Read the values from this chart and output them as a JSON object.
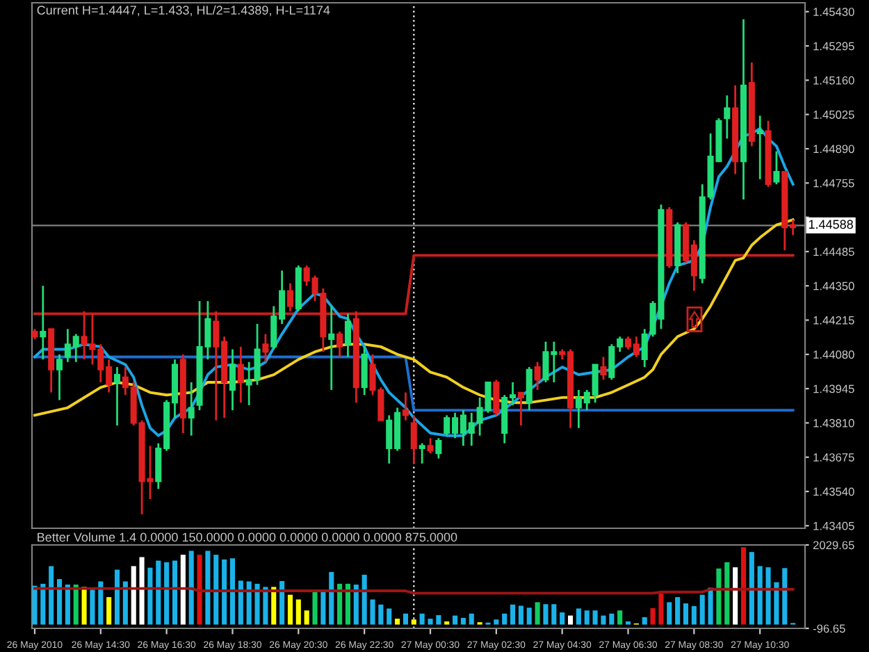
{
  "chart_data": [
    {
      "type": "candlestick",
      "title": "Current H=1.4447, L=1.433, HL/2=1.4389, H-L=1174",
      "tick_labels": "y",
      "xlim": [
        "2010-05-26T12:25",
        "2010-05-27T11:52"
      ],
      "ylim": [
        1.43395,
        1.45465
      ],
      "yticks": [
        {
          "value": 1.4543,
          "label": "1.45430"
        },
        1.45295,
        {
          "value": 1.4516,
          "label": "1.45160"
        },
        1.45025,
        {
          "value": 1.4489,
          "label": "1.44890"
        },
        1.44755,
        {
          "value": 1.4462,
          "label": null
        },
        1.44485,
        {
          "value": 1.4435,
          "label": "1.44350"
        },
        1.44215,
        {
          "value": 1.4408,
          "label": "1.44080"
        },
        1.43945,
        {
          "value": 1.4381,
          "label": "1.43810"
        },
        1.43675,
        {
          "value": 1.4354,
          "label": "1.43540"
        },
        1.43405
      ],
      "x": [
        "2010-05-26T12:30",
        "2010-05-26T12:45",
        "2010-05-26T13:00",
        "2010-05-26T13:15",
        "2010-05-26T13:30",
        "2010-05-26T13:45",
        "2010-05-26T14:00",
        "2010-05-26T14:15",
        "2010-05-26T14:30",
        "2010-05-26T14:45",
        "2010-05-26T15:00",
        "2010-05-26T15:15",
        "2010-05-26T15:30",
        "2010-05-26T15:45",
        "2010-05-26T16:00",
        "2010-05-26T16:15",
        "2010-05-26T16:30",
        "2010-05-26T16:45",
        "2010-05-26T17:00",
        "2010-05-26T17:15",
        "2010-05-26T17:30",
        "2010-05-26T17:45",
        "2010-05-26T18:00",
        "2010-05-26T18:15",
        "2010-05-26T18:30",
        "2010-05-26T18:45",
        "2010-05-26T19:00",
        "2010-05-26T19:15",
        "2010-05-26T19:30",
        "2010-05-26T19:45",
        "2010-05-26T20:00",
        "2010-05-26T20:15",
        "2010-05-26T20:30",
        "2010-05-26T20:45",
        "2010-05-26T21:00",
        "2010-05-26T21:15",
        "2010-05-26T21:30",
        "2010-05-26T21:45",
        "2010-05-26T22:00",
        "2010-05-26T22:15",
        "2010-05-26T22:30",
        "2010-05-26T22:45",
        "2010-05-26T23:00",
        "2010-05-26T23:15",
        "2010-05-26T23:30",
        "2010-05-26T23:45",
        "2010-05-27T00:00",
        "2010-05-27T00:15",
        "2010-05-27T00:30",
        "2010-05-27T00:45",
        "2010-05-27T01:00",
        "2010-05-27T01:15",
        "2010-05-27T01:30",
        "2010-05-27T01:45",
        "2010-05-27T02:00",
        "2010-05-27T02:15",
        "2010-05-27T02:30",
        "2010-05-27T02:45",
        "2010-05-27T03:00",
        "2010-05-27T03:15",
        "2010-05-27T03:30",
        "2010-05-27T03:45",
        "2010-05-27T04:00",
        "2010-05-27T04:15",
        "2010-05-27T04:30",
        "2010-05-27T04:45",
        "2010-05-27T05:00",
        "2010-05-27T05:15",
        "2010-05-27T05:30",
        "2010-05-27T05:45",
        "2010-05-27T06:00",
        "2010-05-27T06:15",
        "2010-05-27T06:30",
        "2010-05-27T06:45",
        "2010-05-27T07:00",
        "2010-05-27T07:15",
        "2010-05-27T07:30",
        "2010-05-27T07:45",
        "2010-05-27T08:00",
        "2010-05-27T08:15",
        "2010-05-27T08:30",
        "2010-05-27T08:45",
        "2010-05-27T09:00",
        "2010-05-27T09:15",
        "2010-05-27T09:30",
        "2010-05-27T09:45",
        "2010-05-27T10:00",
        "2010-05-27T10:15",
        "2010-05-27T10:30",
        "2010-05-27T10:45",
        "2010-05-27T11:00",
        "2010-05-27T11:15",
        "2010-05-27T11:30"
      ],
      "ohlc": [
        [
          1.4417,
          1.4418,
          1.4414,
          1.4415
        ],
        [
          1.4415,
          1.4435,
          1.4406,
          1.4417
        ],
        [
          1.4418,
          1.4418,
          1.4393,
          1.4402
        ],
        [
          1.4402,
          1.4408,
          1.439,
          1.4406
        ],
        [
          1.4407,
          1.4418,
          1.4405,
          1.4412
        ],
        [
          1.4411,
          1.4416,
          1.4405,
          1.4415
        ],
        [
          1.4415,
          1.4425,
          1.4406,
          1.4412
        ],
        [
          1.4412,
          1.4424,
          1.4404,
          1.441
        ],
        [
          1.441,
          1.4412,
          1.4397,
          1.4402
        ],
        [
          1.4403,
          1.4406,
          1.4393,
          1.4396
        ],
        [
          1.4397,
          1.4403,
          1.438,
          1.44
        ],
        [
          1.4399,
          1.4403,
          1.4392,
          1.4395
        ],
        [
          1.4395,
          1.4397,
          1.438,
          1.4381
        ],
        [
          1.4381,
          1.4382,
          1.4345,
          1.4358
        ],
        [
          1.4359,
          1.4372,
          1.4351,
          1.4358
        ],
        [
          1.4358,
          1.4373,
          1.4355,
          1.4371
        ],
        [
          1.4371,
          1.439,
          1.437,
          1.4389
        ],
        [
          1.4389,
          1.4406,
          1.4383,
          1.4404
        ],
        [
          1.4406,
          1.4408,
          1.4377,
          1.4383
        ],
        [
          1.4383,
          1.4397,
          1.4376,
          1.4387
        ],
        [
          1.4388,
          1.4429,
          1.4386,
          1.4411
        ],
        [
          1.4411,
          1.4429,
          1.4406,
          1.4422
        ],
        [
          1.4421,
          1.4425,
          1.4382,
          1.4411
        ],
        [
          1.4413,
          1.4415,
          1.4383,
          1.4397
        ],
        [
          1.4394,
          1.441,
          1.4386,
          1.4404
        ],
        [
          1.4404,
          1.4411,
          1.4389,
          1.4397
        ],
        [
          1.4396,
          1.4405,
          1.4388,
          1.4398
        ],
        [
          1.4398,
          1.442,
          1.4396,
          1.441
        ],
        [
          1.4412,
          1.4416,
          1.4405,
          1.4409
        ],
        [
          1.4411,
          1.4427,
          1.441,
          1.4423
        ],
        [
          1.4422,
          1.4441,
          1.442,
          1.4433
        ],
        [
          1.4433,
          1.4436,
          1.4425,
          1.4427
        ],
        [
          1.4426,
          1.4443,
          1.4425,
          1.4442
        ],
        [
          1.4442,
          1.4443,
          1.4435,
          1.4437
        ],
        [
          1.4438,
          1.4439,
          1.4429,
          1.4432
        ],
        [
          1.4432,
          1.4434,
          1.4409,
          1.4415
        ],
        [
          1.4414,
          1.4427,
          1.4394,
          1.4416
        ],
        [
          1.4416,
          1.4417,
          1.4407,
          1.4411
        ],
        [
          1.4412,
          1.4424,
          1.4407,
          1.4421
        ],
        [
          1.4422,
          1.4425,
          1.4389,
          1.4395
        ],
        [
          1.4395,
          1.4411,
          1.4392,
          1.4408
        ],
        [
          1.4404,
          1.4408,
          1.4392,
          1.4394
        ],
        [
          1.4394,
          1.4395,
          1.4382,
          1.4382
        ],
        [
          1.4371,
          1.4384,
          1.4365,
          1.4382
        ],
        [
          1.4371,
          1.4387,
          1.437,
          1.4385
        ],
        [
          1.4386,
          1.4393,
          1.4382,
          1.4384
        ],
        [
          1.4381,
          1.4384,
          1.4365,
          1.4371
        ],
        [
          1.4371,
          1.4373,
          1.4365,
          1.4372
        ],
        [
          1.4372,
          1.4375,
          1.4369,
          1.437
        ],
        [
          1.4369,
          1.4375,
          1.4367,
          1.4374
        ],
        [
          1.4377,
          1.4384,
          1.4376,
          1.4383
        ],
        [
          1.4377,
          1.4385,
          1.4375,
          1.4383
        ],
        [
          1.4377,
          1.4386,
          1.4372,
          1.4384
        ],
        [
          1.4377,
          1.4385,
          1.4372,
          1.4381
        ],
        [
          1.4381,
          1.4391,
          1.4376,
          1.4387
        ],
        [
          1.4386,
          1.4397,
          1.4385,
          1.4397
        ],
        [
          1.4397,
          1.4398,
          1.4384,
          1.4385
        ],
        [
          1.4377,
          1.4392,
          1.4373,
          1.4391
        ],
        [
          1.4391,
          1.4397,
          1.4388,
          1.4392
        ],
        [
          1.4393,
          1.4393,
          1.438,
          1.4391
        ],
        [
          1.4389,
          1.4403,
          1.4386,
          1.4402
        ],
        [
          1.4403,
          1.4405,
          1.4394,
          1.4398
        ],
        [
          1.4398,
          1.4413,
          1.4397,
          1.4409
        ],
        [
          1.4408,
          1.4413,
          1.4397,
          1.4409
        ],
        [
          1.4409,
          1.441,
          1.4406,
          1.4408
        ],
        [
          1.4409,
          1.441,
          1.4379,
          1.4387
        ],
        [
          1.4387,
          1.4394,
          1.4379,
          1.4391
        ],
        [
          1.4389,
          1.4394,
          1.4386,
          1.4393
        ],
        [
          1.4392,
          1.4404,
          1.4389,
          1.4404
        ],
        [
          1.4403,
          1.4407,
          1.4398,
          1.44
        ],
        [
          1.4399,
          1.4412,
          1.4398,
          1.4411
        ],
        [
          1.4411,
          1.4415,
          1.4409,
          1.4414
        ],
        [
          1.4414,
          1.4415,
          1.441,
          1.4411
        ],
        [
          1.4412,
          1.4415,
          1.4407,
          1.4408
        ],
        [
          1.4406,
          1.4418,
          1.4403,
          1.4416
        ],
        [
          1.4416,
          1.4429,
          1.4415,
          1.4428
        ],
        [
          1.4422,
          1.4467,
          1.4418,
          1.4465
        ],
        [
          1.4465,
          1.4466,
          1.4442,
          1.4443
        ],
        [
          1.4443,
          1.446,
          1.444,
          1.4459
        ],
        [
          1.4459,
          1.446,
          1.4444,
          1.4445
        ],
        [
          1.4451,
          1.4453,
          1.4433,
          1.4439
        ],
        [
          1.4438,
          1.4475,
          1.4436,
          1.447
        ],
        [
          1.447,
          1.4495,
          1.4469,
          1.4486
        ],
        [
          1.4484,
          1.4501,
          1.4484,
          1.45
        ],
        [
          1.4501,
          1.451,
          1.4493,
          1.4505
        ],
        [
          1.4505,
          1.4514,
          1.4479,
          1.4484
        ],
        [
          1.4484,
          1.454,
          1.4469,
          1.4514
        ],
        [
          1.4515,
          1.4523,
          1.449,
          1.4492
        ],
        [
          1.4495,
          1.4502,
          1.4477,
          1.4496
        ],
        [
          1.4496,
          1.45,
          1.4474,
          1.4475
        ],
        [
          1.4476,
          1.4488,
          1.4475,
          1.448
        ],
        [
          1.448,
          1.448,
          1.4449,
          1.4458
        ],
        [
          1.4459,
          1.4461,
          1.4455,
          1.4458
        ]
      ],
      "colors": [
        "#e02020",
        "#22dd77",
        "#e02020",
        "#22dd77",
        "#22dd77",
        "#22dd77",
        "#e02020",
        "#e02020",
        "#e02020",
        "#e02020",
        "#22dd77",
        "#e02020",
        "#e02020",
        "#e02020",
        "#e02020",
        "#22dd77",
        "#22dd77",
        "#22dd77",
        "#e02020",
        "#22dd77",
        "#22dd77",
        "#22dd77",
        "#e02020",
        "#e02020",
        "#22dd77",
        "#e02020",
        "#22dd77",
        "#22dd77",
        "#e02020",
        "#22dd77",
        "#22dd77",
        "#e02020",
        "#22dd77",
        "#e02020",
        "#e02020",
        "#e02020",
        "#22dd77",
        "#e02020",
        "#22dd77",
        "#e02020",
        "#22dd77",
        "#e02020",
        "#e02020",
        "#22dd77",
        "#22dd77",
        "#e02020",
        "#e02020",
        "#22dd77",
        "#e02020",
        "#22dd77",
        "#22dd77",
        "#22dd77",
        "#22dd77",
        "#22dd77",
        "#22dd77",
        "#22dd77",
        "#e02020",
        "#22dd77",
        "#22dd77",
        "#e02020",
        "#22dd77",
        "#e02020",
        "#22dd77",
        "#22dd77",
        "#e02020",
        "#e02020",
        "#22dd77",
        "#22dd77",
        "#22dd77",
        "#e02020",
        "#22dd77",
        "#22dd77",
        "#e02020",
        "#e02020",
        "#22dd77",
        "#22dd77",
        "#22dd77",
        "#e02020",
        "#22dd77",
        "#e02020",
        "#e02020",
        "#22dd77",
        "#22dd77",
        "#22dd77",
        "#22dd77",
        "#e02020",
        "#22dd77",
        "#e02020",
        "#22dd77",
        "#e02020",
        "#22dd77",
        "#e02020",
        "#e02020"
      ],
      "series": [
        {
          "type": "line",
          "color": "#c81e1e",
          "x": [
            "2010-05-26T12:30",
            "2010-05-26T23:45",
            "2010-05-27T00:00",
            "2010-05-27T11:30"
          ],
          "values": [
            1.4424,
            1.4424,
            1.4447,
            1.4447
          ]
        },
        {
          "type": "line",
          "color": "#1e6ed0",
          "x": [
            "2010-05-26T12:30",
            "2010-05-26T23:45",
            "2010-05-27T00:00",
            "2010-05-27T11:30"
          ],
          "values": [
            1.4407,
            1.4407,
            1.4386,
            1.4386
          ]
        },
        {
          "type": "line",
          "color": "#f0d020",
          "x": [
            "2010-05-26T12:30",
            "2010-05-26T13:30",
            "2010-05-26T14:30",
            "2010-05-26T15:00",
            "2010-05-26T15:30",
            "2010-05-26T16:00",
            "2010-05-26T16:30",
            "2010-05-26T17:15",
            "2010-05-26T17:45",
            "2010-05-26T18:30",
            "2010-05-26T19:15",
            "2010-05-26T19:45",
            "2010-05-26T20:30",
            "2010-05-26T21:00",
            "2010-05-26T21:30",
            "2010-05-26T22:00",
            "2010-05-26T22:30",
            "2010-05-26T23:00",
            "2010-05-26T23:30",
            "2010-05-27T00:00",
            "2010-05-27T00:30",
            "2010-05-27T01:00",
            "2010-05-27T01:30",
            "2010-05-27T02:00",
            "2010-05-27T02:30",
            "2010-05-27T03:00",
            "2010-05-27T03:30",
            "2010-05-27T04:00",
            "2010-05-27T04:30",
            "2010-05-27T05:00",
            "2010-05-27T05:30",
            "2010-05-27T06:00",
            "2010-05-27T06:30",
            "2010-05-27T07:00",
            "2010-05-27T07:15",
            "2010-05-27T07:30",
            "2010-05-27T08:00",
            "2010-05-27T08:30",
            "2010-05-27T08:45",
            "2010-05-27T09:00",
            "2010-05-27T09:30",
            "2010-05-27T09:45",
            "2010-05-27T10:00",
            "2010-05-27T10:15",
            "2010-05-27T10:30",
            "2010-05-27T11:00",
            "2010-05-27T11:30"
          ],
          "values": [
            1.4384,
            1.4387,
            1.4395,
            1.4397,
            1.4396,
            1.4393,
            1.4392,
            1.4393,
            1.4397,
            1.4397,
            1.4398,
            1.44,
            1.4406,
            1.4409,
            1.4411,
            1.4412,
            1.4412,
            1.4411,
            1.4408,
            1.4406,
            1.4401,
            1.4399,
            1.4395,
            1.4392,
            1.439,
            1.4389,
            1.4389,
            1.439,
            1.4391,
            1.4391,
            1.4391,
            1.4393,
            1.4396,
            1.4399,
            1.4402,
            1.4408,
            1.4415,
            1.4418,
            1.4422,
            1.4427,
            1.4439,
            1.4445,
            1.4446,
            1.4451,
            1.4454,
            1.4459,
            1.4461
          ]
        },
        {
          "type": "line",
          "color": "#1aa6e6",
          "x": [
            "2010-05-26T12:30",
            "2010-05-26T12:45",
            "2010-05-26T13:00",
            "2010-05-26T13:30",
            "2010-05-26T13:45",
            "2010-05-26T14:00",
            "2010-05-26T14:30",
            "2010-05-26T14:45",
            "2010-05-26T15:15",
            "2010-05-26T15:30",
            "2010-05-26T15:45",
            "2010-05-26T16:00",
            "2010-05-26T16:15",
            "2010-05-26T16:30",
            "2010-05-26T16:45",
            "2010-05-26T17:15",
            "2010-05-26T17:30",
            "2010-05-26T17:45",
            "2010-05-26T18:00",
            "2010-05-26T18:30",
            "2010-05-26T19:00",
            "2010-05-26T19:15",
            "2010-05-26T19:30",
            "2010-05-26T20:00",
            "2010-05-26T20:30",
            "2010-05-26T21:00",
            "2010-05-26T21:15",
            "2010-05-26T21:30",
            "2010-05-26T21:45",
            "2010-05-26T22:00",
            "2010-05-26T22:15",
            "2010-05-26T22:30",
            "2010-05-26T22:45",
            "2010-05-26T23:00",
            "2010-05-26T23:15",
            "2010-05-26T23:45",
            "2010-05-27T00:00",
            "2010-05-27T00:30",
            "2010-05-27T01:00",
            "2010-05-27T01:30",
            "2010-05-27T02:00",
            "2010-05-27T02:30",
            "2010-05-27T03:00",
            "2010-05-27T03:30",
            "2010-05-27T04:00",
            "2010-05-27T04:30",
            "2010-05-27T05:00",
            "2010-05-27T06:00",
            "2010-05-27T06:30",
            "2010-05-27T07:00",
            "2010-05-27T07:30",
            "2010-05-27T07:45",
            "2010-05-27T08:00",
            "2010-05-27T08:15",
            "2010-05-27T08:30",
            "2010-05-27T08:45",
            "2010-05-27T09:00",
            "2010-05-27T09:15",
            "2010-05-27T09:30",
            "2010-05-27T09:45",
            "2010-05-27T10:00",
            "2010-05-27T10:15",
            "2010-05-27T10:30",
            "2010-05-27T10:45",
            "2010-05-27T11:00",
            "2010-05-27T11:15",
            "2010-05-27T11:30"
          ],
          "values": [
            1.4407,
            1.441,
            1.441,
            1.441,
            1.4411,
            1.4412,
            1.4411,
            1.4407,
            1.4404,
            1.4399,
            1.4388,
            1.4379,
            1.4376,
            1.4378,
            1.4383,
            1.4387,
            1.4393,
            1.44,
            1.4403,
            1.4404,
            1.4402,
            1.4403,
            1.4405,
            1.4416,
            1.4426,
            1.4432,
            1.4431,
            1.4427,
            1.4423,
            1.4422,
            1.4416,
            1.4411,
            1.4404,
            1.4398,
            1.4393,
            1.4387,
            1.4383,
            1.4377,
            1.4376,
            1.4376,
            1.4382,
            1.4384,
            1.4389,
            1.4394,
            1.4399,
            1.4403,
            1.44,
            1.4402,
            1.4407,
            1.4411,
            1.4427,
            1.4436,
            1.4443,
            1.4444,
            1.4445,
            1.4451,
            1.4466,
            1.4478,
            1.4482,
            1.4488,
            1.4494,
            1.4495,
            1.4497,
            1.4493,
            1.449,
            1.4482,
            1.4475
          ]
        }
      ],
      "ref_lines": [
        {
          "axis": "y",
          "value": 1.44588,
          "label": "1.44588",
          "color": "#808080",
          "line_style": "solid"
        },
        {
          "axis": "x",
          "value": "2010-05-27T00:00",
          "label": null,
          "color": "#d8d8d8",
          "line_style": "dotted"
        }
      ]
    },
    {
      "type": "bar",
      "title": "Better Volume 1.4 0.0000 150.0000 0.0000 0.0000 0.0000 0.0000 875.0000",
      "xlim": [
        "2010-05-26T12:25",
        "2010-05-27T11:52"
      ],
      "ylim": [
        -96.65,
        2029.65
      ],
      "yticks": [
        2029.65,
        -96.65
      ],
      "xticks": [
        {
          "value": "2010-05-26T12:30",
          "label": "26 May 2010"
        },
        {
          "value": "2010-05-26T14:30",
          "label": "26 May 14:30"
        },
        {
          "value": "2010-05-26T16:30",
          "label": "26 May 16:30"
        },
        {
          "value": "2010-05-26T18:30",
          "label": "26 May 18:30"
        },
        {
          "value": "2010-05-26T20:30",
          "label": "26 May 20:30"
        },
        {
          "value": "2010-05-26T22:30",
          "label": "26 May 22:30"
        },
        {
          "value": "2010-05-27T00:30",
          "label": "27 May 00:30"
        },
        {
          "value": "2010-05-27T02:30",
          "label": "27 May 02:30"
        },
        {
          "value": "2010-05-27T04:30",
          "label": "27 May 04:30"
        },
        {
          "value": "2010-05-27T06:30",
          "label": "27 May 06:30"
        },
        {
          "value": "2010-05-27T08:30",
          "label": "27 May 08:30"
        },
        {
          "value": "2010-05-27T10:30",
          "label": "27 May 10:30"
        }
      ],
      "series": [
        {
          "type": "bar",
          "x": [
            "2010-05-26T12:30",
            "2010-05-26T12:45",
            "2010-05-26T13:00",
            "2010-05-26T13:15",
            "2010-05-26T13:30",
            "2010-05-26T13:45",
            "2010-05-26T14:00",
            "2010-05-26T14:15",
            "2010-05-26T14:30",
            "2010-05-26T14:45",
            "2010-05-26T15:00",
            "2010-05-26T15:15",
            "2010-05-26T15:30",
            "2010-05-26T15:45",
            "2010-05-26T16:00",
            "2010-05-26T16:15",
            "2010-05-26T16:30",
            "2010-05-26T16:45",
            "2010-05-26T17:00",
            "2010-05-26T17:15",
            "2010-05-26T17:30",
            "2010-05-26T17:45",
            "2010-05-26T18:00",
            "2010-05-26T18:15",
            "2010-05-26T18:30",
            "2010-05-26T18:45",
            "2010-05-26T19:00",
            "2010-05-26T19:15",
            "2010-05-26T19:30",
            "2010-05-26T19:45",
            "2010-05-26T20:00",
            "2010-05-26T20:15",
            "2010-05-26T20:30",
            "2010-05-26T20:45",
            "2010-05-26T21:00",
            "2010-05-26T21:15",
            "2010-05-26T21:30",
            "2010-05-26T21:45",
            "2010-05-26T22:00",
            "2010-05-26T22:15",
            "2010-05-26T22:30",
            "2010-05-26T22:45",
            "2010-05-26T23:00",
            "2010-05-26T23:15",
            "2010-05-26T23:30",
            "2010-05-26T23:45",
            "2010-05-27T00:00",
            "2010-05-27T00:15",
            "2010-05-27T00:30",
            "2010-05-27T00:45",
            "2010-05-27T01:00",
            "2010-05-27T01:15",
            "2010-05-27T01:30",
            "2010-05-27T01:45",
            "2010-05-27T02:00",
            "2010-05-27T02:15",
            "2010-05-27T02:30",
            "2010-05-27T02:45",
            "2010-05-27T03:00",
            "2010-05-27T03:15",
            "2010-05-27T03:30",
            "2010-05-27T03:45",
            "2010-05-27T04:00",
            "2010-05-27T04:15",
            "2010-05-27T04:30",
            "2010-05-27T04:45",
            "2010-05-27T05:00",
            "2010-05-27T05:15",
            "2010-05-27T05:30",
            "2010-05-27T05:45",
            "2010-05-27T06:00",
            "2010-05-27T06:15",
            "2010-05-27T06:30",
            "2010-05-27T06:45",
            "2010-05-27T07:00",
            "2010-05-27T07:15",
            "2010-05-27T07:30",
            "2010-05-27T07:45",
            "2010-05-27T08:00",
            "2010-05-27T08:15",
            "2010-05-27T08:30",
            "2010-05-27T08:45",
            "2010-05-27T09:00",
            "2010-05-27T09:15",
            "2010-05-27T09:30",
            "2010-05-27T09:45",
            "2010-05-27T10:00",
            "2010-05-27T10:15",
            "2010-05-27T10:30",
            "2010-05-27T10:45",
            "2010-05-27T11:00",
            "2010-05-27T11:15",
            "2010-05-27T11:30"
          ],
          "values": [
            990,
            1040,
            1490,
            1160,
            1020,
            1020,
            960,
            890,
            1100,
            700,
            1400,
            1100,
            1490,
            1720,
            1450,
            1630,
            1590,
            1630,
            1780,
            1880,
            1780,
            1880,
            1780,
            1660,
            1690,
            1120,
            1100,
            1040,
            960,
            960,
            1110,
            760,
            640,
            360,
            890,
            830,
            1340,
            1040,
            1040,
            1020,
            1270,
            640,
            510,
            410,
            150,
            280,
            130,
            280,
            150,
            240,
            80,
            230,
            170,
            280,
            60,
            50,
            130,
            280,
            510,
            480,
            430,
            570,
            520,
            520,
            310,
            230,
            410,
            360,
            360,
            230,
            280,
            360,
            80,
            30,
            190,
            420,
            790,
            570,
            700,
            540,
            470,
            760,
            940,
            1430,
            1590,
            1460,
            1970,
            1850,
            1490,
            1460,
            1080,
            1440,
            40
          ],
          "colors": [
            "#1ab2e8",
            "#1ab2e8",
            "#1ab2e8",
            "#1ab2e8",
            "#1ab2e8",
            "#10cc60",
            "#ffff00",
            "#1ab2e8",
            "#1ab2e8",
            "#ffff00",
            "#1ab2e8",
            "#1ab2e8",
            "#ffffff",
            "#ffffff",
            "#1ab2e8",
            "#1ab2e8",
            "#1ab2e8",
            "#1ab2e8",
            "#ffffff",
            "#1ab2e8",
            "#dd1111",
            "#1ab2e8",
            "#1ab2e8",
            "#1ab2e8",
            "#1ab2e8",
            "#1ab2e8",
            "#1ab2e8",
            "#1ab2e8",
            "#1ab2e8",
            "#ffff00",
            "#1ab2e8",
            "#ffff00",
            "#ffff00",
            "#ffff00",
            "#10cc60",
            "#1ab2e8",
            "#1ab2e8",
            "#10cc60",
            "#10cc60",
            "#1ab2e8",
            "#1ab2e8",
            "#1ab2e8",
            "#1ab2e8",
            "#1ab2e8",
            "#ffff00",
            "#1ab2e8",
            "#ffff00",
            "#1ab2e8",
            "#1ab2e8",
            "#1ab2e8",
            "#ffff00",
            "#1ab2e8",
            "#1ab2e8",
            "#1ab2e8",
            "#ffff00",
            "#1ab2e8",
            "#1ab2e8",
            "#1ab2e8",
            "#1ab2e8",
            "#1ab2e8",
            "#1ab2e8",
            "#10cc60",
            "#1ab2e8",
            "#1ab2e8",
            "#1ab2e8",
            "#ffffff",
            "#1ab2e8",
            "#1ab2e8",
            "#1ab2e8",
            "#1ab2e8",
            "#1ab2e8",
            "#10cc60",
            "#1ab2e8",
            "#ffff00",
            "#1ab2e8",
            "#dd1111",
            "#dd1111",
            "#1ab2e8",
            "#1ab2e8",
            "#1ab2e8",
            "#1ab2e8",
            "#1ab2e8",
            "#1ab2e8",
            "#10cc60",
            "#10cc60",
            "#ffffff",
            "#dd1111",
            "#1ab2e8",
            "#1ab2e8",
            "#1ab2e8",
            "#1ab2e8",
            "#1ab2e8",
            "#1ab2e8"
          ]
        },
        {
          "type": "line",
          "color": "#a01414",
          "x": [
            "2010-05-26T12:30",
            "2010-05-26T17:15",
            "2010-05-26T17:30",
            "2010-05-26T23:45",
            "2010-05-27T00:00",
            "2010-05-27T07:15",
            "2010-05-27T07:30",
            "2010-05-27T08:45",
            "2010-05-27T09:00",
            "2010-05-27T11:30"
          ],
          "values": [
            920,
            920,
            860,
            860,
            800,
            800,
            830,
            830,
            900,
            900
          ]
        }
      ],
      "ref_lines": [
        {
          "axis": "x",
          "value": "2010-05-27T00:00",
          "label": null,
          "color": "#d8d8d8",
          "line_style": "dotted"
        }
      ]
    }
  ]
}
